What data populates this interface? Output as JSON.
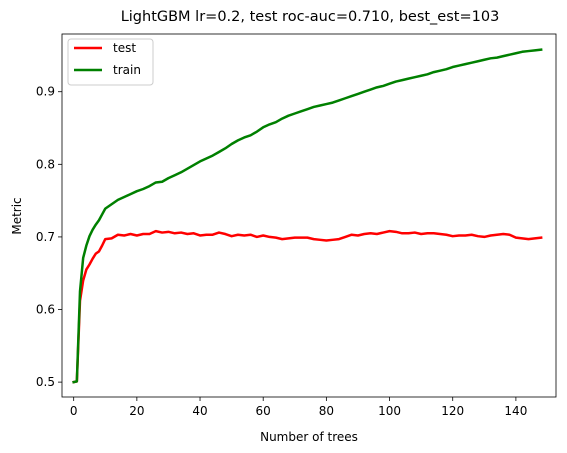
{
  "chart_data": {
    "type": "line",
    "title": "LightGBM lr=0.2, test roc-auc=0.710, best_est=103",
    "xlabel": "Number of trees",
    "ylabel": "Metric",
    "xlim": [
      -3.7,
      152.7
    ],
    "ylim": [
      0.4795,
      0.9795
    ],
    "xticks": [
      0,
      20,
      40,
      60,
      80,
      100,
      120,
      140
    ],
    "yticks": [
      0.5,
      0.6,
      0.7,
      0.8,
      0.9
    ],
    "ytick_labels": [
      "0.5",
      "0.6",
      "0.7",
      "0.8",
      "0.9"
    ],
    "grid": false,
    "legend": "upper left",
    "series": [
      {
        "name": "test",
        "color": "#ff0000",
        "x": [
          0,
          1,
          2,
          3,
          4,
          5,
          6,
          7,
          8,
          9,
          10,
          12,
          14,
          16,
          18,
          20,
          22,
          24,
          26,
          28,
          30,
          32,
          34,
          36,
          38,
          40,
          42,
          44,
          46,
          48,
          50,
          52,
          54,
          56,
          58,
          60,
          62,
          64,
          66,
          68,
          70,
          72,
          74,
          76,
          78,
          80,
          82,
          84,
          86,
          88,
          90,
          92,
          94,
          96,
          98,
          100,
          102,
          104,
          106,
          108,
          110,
          112,
          114,
          116,
          118,
          120,
          122,
          124,
          126,
          128,
          130,
          132,
          134,
          136,
          138,
          140,
          142,
          144,
          146,
          148
        ],
        "values": [
          0.5,
          0.501,
          0.612,
          0.64,
          0.655,
          0.662,
          0.67,
          0.677,
          0.68,
          0.688,
          0.697,
          0.698,
          0.703,
          0.702,
          0.704,
          0.702,
          0.704,
          0.704,
          0.708,
          0.706,
          0.707,
          0.705,
          0.706,
          0.704,
          0.705,
          0.702,
          0.703,
          0.703,
          0.706,
          0.704,
          0.701,
          0.703,
          0.702,
          0.703,
          0.7,
          0.702,
          0.7,
          0.699,
          0.697,
          0.698,
          0.699,
          0.699,
          0.699,
          0.697,
          0.696,
          0.695,
          0.696,
          0.697,
          0.7,
          0.703,
          0.702,
          0.704,
          0.705,
          0.704,
          0.706,
          0.708,
          0.707,
          0.705,
          0.705,
          0.706,
          0.704,
          0.705,
          0.705,
          0.704,
          0.703,
          0.701,
          0.702,
          0.702,
          0.703,
          0.701,
          0.7,
          0.702,
          0.703,
          0.704,
          0.703,
          0.699,
          0.698,
          0.697,
          0.698,
          0.699
        ]
      },
      {
        "name": "train",
        "color": "#008000",
        "x": [
          0,
          1,
          2,
          3,
          4,
          5,
          6,
          7,
          8,
          9,
          10,
          12,
          14,
          16,
          18,
          20,
          22,
          24,
          26,
          28,
          30,
          32,
          34,
          36,
          38,
          40,
          42,
          44,
          46,
          48,
          50,
          52,
          54,
          56,
          58,
          60,
          62,
          64,
          66,
          68,
          70,
          72,
          74,
          76,
          78,
          80,
          82,
          84,
          86,
          88,
          90,
          92,
          94,
          96,
          98,
          100,
          102,
          104,
          106,
          108,
          110,
          112,
          114,
          116,
          118,
          120,
          122,
          124,
          126,
          128,
          130,
          132,
          134,
          136,
          138,
          140,
          142,
          144,
          146,
          148
        ],
        "values": [
          0.5,
          0.501,
          0.625,
          0.671,
          0.688,
          0.701,
          0.71,
          0.717,
          0.723,
          0.731,
          0.739,
          0.745,
          0.751,
          0.755,
          0.759,
          0.763,
          0.766,
          0.77,
          0.775,
          0.776,
          0.781,
          0.785,
          0.789,
          0.794,
          0.799,
          0.804,
          0.808,
          0.812,
          0.817,
          0.822,
          0.828,
          0.833,
          0.837,
          0.84,
          0.845,
          0.851,
          0.855,
          0.858,
          0.863,
          0.867,
          0.87,
          0.873,
          0.876,
          0.879,
          0.881,
          0.883,
          0.885,
          0.888,
          0.891,
          0.894,
          0.897,
          0.9,
          0.903,
          0.906,
          0.908,
          0.911,
          0.914,
          0.916,
          0.918,
          0.92,
          0.922,
          0.924,
          0.927,
          0.929,
          0.931,
          0.934,
          0.936,
          0.938,
          0.94,
          0.942,
          0.944,
          0.946,
          0.947,
          0.949,
          0.951,
          0.953,
          0.955,
          0.956,
          0.957,
          0.958
        ]
      }
    ]
  }
}
